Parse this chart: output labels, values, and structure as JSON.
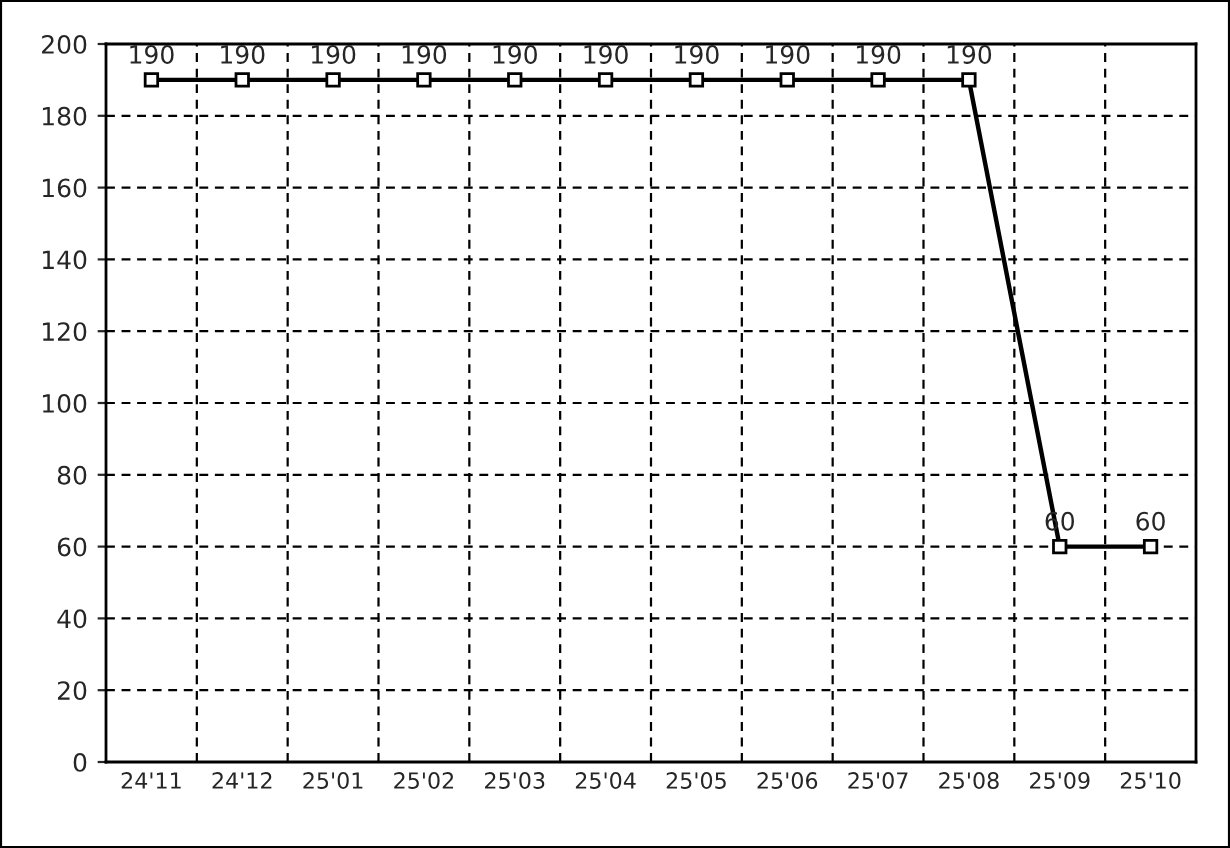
{
  "chart_data": {
    "type": "line",
    "categories": [
      "24'11",
      "24'12",
      "25'01",
      "25'02",
      "25'03",
      "25'04",
      "25'05",
      "25'06",
      "25'07",
      "25'08",
      "25'09",
      "25'10"
    ],
    "series": [
      {
        "color": "#000000",
        "values": [
          190,
          190,
          190,
          190,
          190,
          190,
          190,
          190,
          190,
          190,
          60,
          60
        ]
      }
    ],
    "ylim": [
      0,
      200
    ],
    "yticks": [
      0,
      20,
      40,
      60,
      80,
      100,
      120,
      140,
      160,
      180,
      200
    ],
    "grid": true,
    "marker": "square",
    "line_style": "solid",
    "data_labels": true,
    "legend": false
  }
}
